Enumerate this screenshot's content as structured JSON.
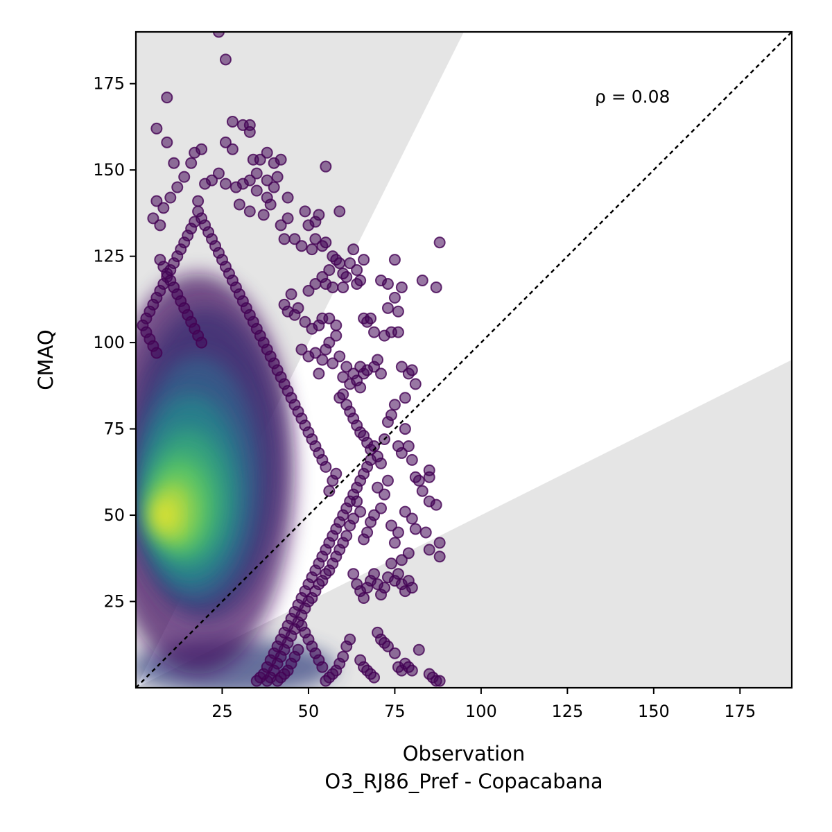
{
  "chart_data": {
    "type": "scatter",
    "title": "",
    "xlabel": "Observation",
    "xlabel_line2": "O3_RJ86_Pref - Copacabana",
    "ylabel": "CMAQ",
    "xlim": [
      0,
      190
    ],
    "ylim": [
      0,
      190
    ],
    "xticks": [
      25,
      50,
      75,
      100,
      125,
      150,
      175
    ],
    "yticks": [
      25,
      50,
      75,
      100,
      125,
      150,
      175
    ],
    "annotation": "ρ = 0.08",
    "identity_line": true,
    "shaded_band_slopes": [
      0.5,
      2.0
    ],
    "colormap": "viridis",
    "point_alpha": 0.55,
    "grid": false,
    "outlier_points": [
      [
        24,
        190
      ],
      [
        26,
        182
      ],
      [
        9,
        171
      ],
      [
        6,
        162
      ],
      [
        9,
        158
      ],
      [
        26,
        158
      ],
      [
        28,
        164
      ],
      [
        31,
        163
      ],
      [
        33,
        163
      ],
      [
        33,
        161
      ],
      [
        28,
        156
      ],
      [
        19,
        156
      ],
      [
        17,
        155
      ],
      [
        16,
        152
      ],
      [
        11,
        152
      ],
      [
        34,
        153
      ],
      [
        36,
        153
      ],
      [
        38,
        155
      ],
      [
        40,
        152
      ],
      [
        42,
        153
      ],
      [
        55,
        151
      ],
      [
        41,
        148
      ],
      [
        35,
        149
      ],
      [
        38,
        147
      ],
      [
        33,
        147
      ],
      [
        31,
        146
      ],
      [
        29,
        145
      ],
      [
        24,
        149
      ],
      [
        26,
        146
      ],
      [
        14,
        148
      ],
      [
        12,
        145
      ],
      [
        10,
        142
      ],
      [
        22,
        147
      ],
      [
        20,
        146
      ],
      [
        35,
        144
      ],
      [
        38,
        142
      ],
      [
        40,
        145
      ],
      [
        44,
        142
      ],
      [
        18,
        141
      ],
      [
        6,
        141
      ],
      [
        8,
        139
      ],
      [
        5,
        136
      ],
      [
        7,
        134
      ],
      [
        30,
        140
      ],
      [
        33,
        138
      ],
      [
        37,
        137
      ],
      [
        39,
        140
      ],
      [
        53,
        137
      ],
      [
        59,
        138
      ],
      [
        49,
        138
      ],
      [
        50,
        134
      ],
      [
        52,
        135
      ],
      [
        44,
        136
      ],
      [
        42,
        134
      ],
      [
        46,
        130
      ],
      [
        43,
        130
      ],
      [
        48,
        128
      ],
      [
        51,
        127
      ],
      [
        52,
        130
      ],
      [
        54,
        128
      ],
      [
        55,
        129
      ],
      [
        58,
        124
      ],
      [
        57,
        125
      ],
      [
        59,
        123
      ],
      [
        63,
        127
      ],
      [
        62,
        123
      ],
      [
        64,
        121
      ],
      [
        66,
        124
      ],
      [
        64,
        117
      ],
      [
        65,
        118
      ],
      [
        71,
        118
      ],
      [
        73,
        117
      ],
      [
        77,
        116
      ],
      [
        83,
        118
      ],
      [
        87,
        116
      ],
      [
        88,
        129
      ],
      [
        75,
        124
      ],
      [
        61,
        119
      ],
      [
        60,
        120
      ],
      [
        55,
        117
      ],
      [
        54,
        119
      ],
      [
        56,
        121
      ],
      [
        57,
        116
      ],
      [
        52,
        117
      ],
      [
        50,
        115
      ],
      [
        45,
        114
      ],
      [
        43,
        111
      ],
      [
        44,
        109
      ],
      [
        47,
        110
      ],
      [
        46,
        108
      ],
      [
        49,
        106
      ],
      [
        51,
        104
      ],
      [
        53,
        105
      ],
      [
        54,
        107
      ],
      [
        56,
        107
      ],
      [
        58,
        105
      ],
      [
        60,
        116
      ],
      [
        48,
        98
      ],
      [
        50,
        96
      ],
      [
        52,
        97
      ],
      [
        54,
        95
      ],
      [
        57,
        94
      ],
      [
        59,
        96
      ],
      [
        58,
        102
      ],
      [
        56,
        100
      ],
      [
        55,
        98
      ],
      [
        53,
        91
      ],
      [
        60,
        90
      ],
      [
        61,
        93
      ],
      [
        62,
        88
      ],
      [
        63,
        91
      ],
      [
        64,
        89
      ],
      [
        65,
        87
      ],
      [
        66,
        107
      ],
      [
        67,
        106
      ],
      [
        68,
        107
      ],
      [
        69,
        103
      ],
      [
        70,
        95
      ],
      [
        71,
        91
      ],
      [
        72,
        102
      ],
      [
        73,
        110
      ],
      [
        74,
        103
      ],
      [
        75,
        113
      ],
      [
        76,
        109
      ],
      [
        77,
        93
      ],
      [
        78,
        84
      ],
      [
        79,
        91
      ],
      [
        80,
        92
      ],
      [
        81,
        88
      ],
      [
        76,
        103
      ],
      [
        65,
        93
      ],
      [
        66,
        91
      ],
      [
        67,
        92
      ],
      [
        69,
        93
      ],
      [
        59,
        84
      ],
      [
        60,
        85
      ],
      [
        61,
        82
      ],
      [
        62,
        80
      ],
      [
        63,
        78
      ],
      [
        64,
        76
      ],
      [
        65,
        74
      ],
      [
        66,
        73
      ],
      [
        67,
        71
      ],
      [
        68,
        69
      ],
      [
        69,
        70
      ],
      [
        70,
        67
      ],
      [
        71,
        65
      ],
      [
        72,
        72
      ],
      [
        73,
        77
      ],
      [
        74,
        79
      ],
      [
        75,
        82
      ],
      [
        76,
        70
      ],
      [
        77,
        68
      ],
      [
        78,
        75
      ],
      [
        79,
        70
      ],
      [
        80,
        66
      ],
      [
        81,
        61
      ],
      [
        82,
        60
      ],
      [
        83,
        57
      ],
      [
        85,
        63
      ],
      [
        85,
        61
      ],
      [
        87,
        53
      ],
      [
        85,
        54
      ],
      [
        88,
        42
      ],
      [
        88,
        38
      ],
      [
        85,
        40
      ],
      [
        84,
        45
      ],
      [
        80,
        49
      ],
      [
        81,
        46
      ],
      [
        78,
        51
      ],
      [
        79,
        39
      ],
      [
        77,
        37
      ],
      [
        76,
        45
      ],
      [
        75,
        42
      ],
      [
        74,
        47
      ],
      [
        73,
        60
      ],
      [
        72,
        56
      ],
      [
        71,
        52
      ],
      [
        70,
        58
      ],
      [
        69,
        50
      ],
      [
        68,
        48
      ],
      [
        67,
        45
      ],
      [
        66,
        43
      ],
      [
        65,
        51
      ],
      [
        64,
        54
      ],
      [
        63,
        49
      ],
      [
        62,
        47
      ],
      [
        61,
        44
      ],
      [
        60,
        42
      ],
      [
        59,
        40
      ],
      [
        58,
        38
      ],
      [
        57,
        36
      ],
      [
        56,
        34
      ],
      [
        55,
        33
      ],
      [
        54,
        31
      ],
      [
        53,
        30
      ],
      [
        52,
        28
      ],
      [
        51,
        26
      ],
      [
        50,
        25
      ],
      [
        49,
        23
      ],
      [
        48,
        21
      ],
      [
        47,
        19
      ],
      [
        46,
        17
      ],
      [
        45,
        15
      ],
      [
        44,
        13
      ],
      [
        43,
        11
      ],
      [
        42,
        9
      ],
      [
        41,
        7
      ],
      [
        40,
        5
      ],
      [
        39,
        3
      ],
      [
        38,
        2
      ],
      [
        63,
        33
      ],
      [
        64,
        30
      ],
      [
        65,
        28
      ],
      [
        66,
        26
      ],
      [
        67,
        29
      ],
      [
        68,
        31
      ],
      [
        69,
        33
      ],
      [
        70,
        30
      ],
      [
        71,
        27
      ],
      [
        72,
        29
      ],
      [
        73,
        32
      ],
      [
        74,
        36
      ],
      [
        75,
        31
      ],
      [
        76,
        33
      ],
      [
        77,
        30
      ],
      [
        78,
        28
      ],
      [
        79,
        31
      ],
      [
        80,
        29
      ],
      [
        70,
        16
      ],
      [
        71,
        14
      ],
      [
        72,
        13
      ],
      [
        73,
        12
      ],
      [
        75,
        10
      ],
      [
        76,
        6
      ],
      [
        77,
        5
      ],
      [
        78,
        7
      ],
      [
        79,
        6
      ],
      [
        80,
        5
      ],
      [
        82,
        11
      ],
      [
        85,
        4
      ],
      [
        86,
        3
      ],
      [
        87,
        2
      ],
      [
        88,
        2
      ],
      [
        65,
        8
      ],
      [
        66,
        6
      ],
      [
        67,
        5
      ],
      [
        68,
        4
      ],
      [
        69,
        3
      ],
      [
        62,
        14
      ],
      [
        61,
        12
      ],
      [
        60,
        9
      ],
      [
        59,
        7
      ],
      [
        58,
        5
      ],
      [
        57,
        4
      ],
      [
        56,
        3
      ],
      [
        55,
        2
      ],
      [
        54,
        6
      ],
      [
        53,
        8
      ],
      [
        52,
        10
      ],
      [
        51,
        12
      ],
      [
        50,
        14
      ],
      [
        49,
        16
      ],
      [
        48,
        18
      ],
      [
        47,
        11
      ],
      [
        46,
        9
      ],
      [
        45,
        7
      ],
      [
        44,
        5
      ],
      [
        43,
        4
      ],
      [
        42,
        3
      ],
      [
        41,
        2
      ],
      [
        36,
        3
      ],
      [
        35,
        2
      ],
      [
        37,
        4
      ],
      [
        38,
        6
      ],
      [
        39,
        8
      ],
      [
        40,
        10
      ],
      [
        41,
        12
      ],
      [
        42,
        14
      ],
      [
        43,
        16
      ],
      [
        44,
        18
      ],
      [
        45,
        20
      ],
      [
        46,
        22
      ],
      [
        47,
        24
      ],
      [
        48,
        26
      ],
      [
        49,
        28
      ],
      [
        50,
        30
      ],
      [
        51,
        32
      ],
      [
        52,
        34
      ],
      [
        53,
        36
      ],
      [
        54,
        38
      ],
      [
        55,
        40
      ],
      [
        56,
        42
      ],
      [
        57,
        44
      ],
      [
        58,
        46
      ],
      [
        59,
        48
      ],
      [
        60,
        50
      ],
      [
        61,
        52
      ],
      [
        62,
        54
      ],
      [
        63,
        56
      ],
      [
        64,
        58
      ],
      [
        65,
        60
      ],
      [
        66,
        62
      ],
      [
        67,
        64
      ],
      [
        68,
        66
      ],
      [
        56,
        57
      ],
      [
        57,
        60
      ],
      [
        58,
        62
      ],
      [
        55,
        64
      ],
      [
        54,
        66
      ],
      [
        53,
        68
      ],
      [
        52,
        70
      ],
      [
        51,
        72
      ],
      [
        50,
        74
      ],
      [
        49,
        76
      ],
      [
        48,
        78
      ],
      [
        47,
        80
      ],
      [
        46,
        82
      ],
      [
        45,
        84
      ],
      [
        44,
        86
      ],
      [
        43,
        88
      ],
      [
        42,
        90
      ],
      [
        41,
        92
      ],
      [
        40,
        94
      ],
      [
        39,
        96
      ],
      [
        38,
        98
      ],
      [
        37,
        100
      ],
      [
        36,
        102
      ],
      [
        35,
        104
      ],
      [
        34,
        106
      ],
      [
        33,
        108
      ],
      [
        32,
        110
      ],
      [
        31,
        112
      ],
      [
        30,
        114
      ],
      [
        29,
        116
      ],
      [
        28,
        118
      ],
      [
        27,
        120
      ],
      [
        26,
        122
      ],
      [
        25,
        124
      ],
      [
        24,
        126
      ],
      [
        23,
        128
      ],
      [
        22,
        130
      ],
      [
        21,
        132
      ],
      [
        20,
        134
      ],
      [
        19,
        136
      ],
      [
        18,
        138
      ],
      [
        17,
        135
      ],
      [
        16,
        133
      ],
      [
        15,
        131
      ],
      [
        14,
        129
      ],
      [
        13,
        127
      ],
      [
        12,
        125
      ],
      [
        11,
        123
      ],
      [
        10,
        121
      ],
      [
        9,
        119
      ],
      [
        8,
        117
      ],
      [
        7,
        115
      ],
      [
        6,
        113
      ],
      [
        5,
        111
      ],
      [
        4,
        109
      ],
      [
        3,
        107
      ],
      [
        2,
        105
      ],
      [
        3,
        103
      ],
      [
        4,
        101
      ],
      [
        5,
        99
      ],
      [
        6,
        97
      ],
      [
        7,
        124
      ],
      [
        8,
        122
      ],
      [
        9,
        120
      ],
      [
        10,
        118
      ],
      [
        11,
        116
      ],
      [
        12,
        114
      ],
      [
        13,
        112
      ],
      [
        14,
        110
      ],
      [
        15,
        108
      ],
      [
        16,
        106
      ],
      [
        17,
        104
      ],
      [
        18,
        102
      ],
      [
        19,
        100
      ]
    ],
    "density_blobs": [
      {
        "x": 20,
        "y": 65,
        "rx": 22,
        "ry": 45,
        "value": 0.15
      },
      {
        "x": 18,
        "y": 60,
        "rx": 18,
        "ry": 36,
        "value": 0.3
      },
      {
        "x": 16,
        "y": 57,
        "rx": 15,
        "ry": 28,
        "value": 0.45
      },
      {
        "x": 15,
        "y": 55,
        "rx": 12,
        "ry": 20,
        "value": 0.6
      },
      {
        "x": 13,
        "y": 53,
        "rx": 9,
        "ry": 14,
        "value": 0.75
      },
      {
        "x": 11,
        "y": 51,
        "rx": 6,
        "ry": 9,
        "value": 0.88
      },
      {
        "x": 8,
        "y": 50,
        "rx": 3.5,
        "ry": 5,
        "value": 0.98
      }
    ]
  }
}
